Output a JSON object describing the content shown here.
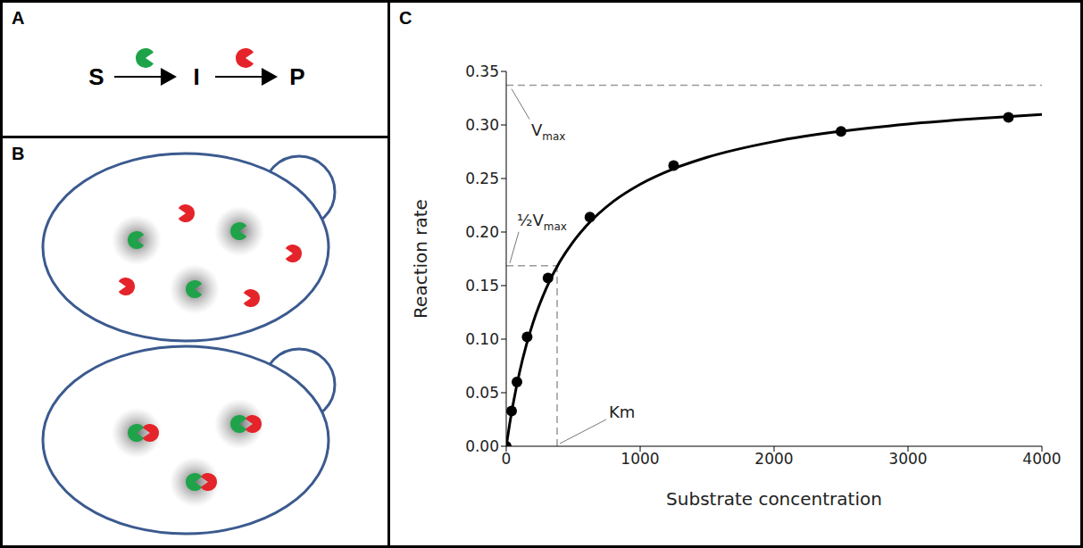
{
  "panels": [
    {
      "letter": "A",
      "reaction": [
        "S",
        "I",
        "P"
      ]
    },
    {
      "letter": "B"
    },
    {
      "letter": "C"
    }
  ],
  "chart_data": {
    "type": "line",
    "x_label": "Substrate concentration",
    "y_label": "Reaction rate",
    "color": "#000000",
    "grid": false,
    "x": [
      0,
      25,
      50,
      100,
      150,
      200,
      300,
      400,
      500,
      600,
      800,
      1000,
      1250,
      1500,
      2000,
      2500,
      3000,
      3500,
      4000
    ],
    "values": [
      0,
      0.0205,
      0.0386,
      0.0694,
      0.0944,
      0.1153,
      0.1478,
      0.1722,
      0.191,
      0.206,
      0.2286,
      0.2446,
      0.2591,
      0.2698,
      0.2845,
      0.2941,
      0.3009,
      0.3059,
      0.3098
    ],
    "points": {
      "marker": "o",
      "x": [
        0,
        40,
        80,
        156,
        312,
        625,
        1250,
        2500,
        3750
      ],
      "values": [
        0,
        0.033,
        0.06,
        0.102,
        0.157,
        0.214,
        0.262,
        0.294,
        0.307
      ]
    },
    "vmax": {
      "label": {
        "main": "V",
        "sub": "max"
      },
      "value": 0.337
    },
    "half_vmax": {
      "label": {
        "main": "½V",
        "sub": "max"
      },
      "value": 0.1685
    },
    "km": {
      "label": "Km",
      "value": 380
    },
    "xlim": [
      0,
      4000
    ],
    "ylim": [
      0,
      0.35
    ],
    "xticks": [
      0,
      1000,
      2000,
      3000,
      4000
    ],
    "yticks": [
      {
        "value": 0,
        "label": "0.00"
      },
      {
        "value": 0.05,
        "label": "0.05"
      },
      {
        "value": 0.1,
        "label": "0.10"
      },
      {
        "value": 0.15,
        "label": "0.15"
      },
      {
        "value": 0.2,
        "label": "0.20"
      },
      {
        "value": 0.25,
        "label": "0.25"
      },
      {
        "value": 0.3,
        "label": "0.30"
      },
      {
        "value": 0.35,
        "label": "0.35"
      }
    ]
  }
}
